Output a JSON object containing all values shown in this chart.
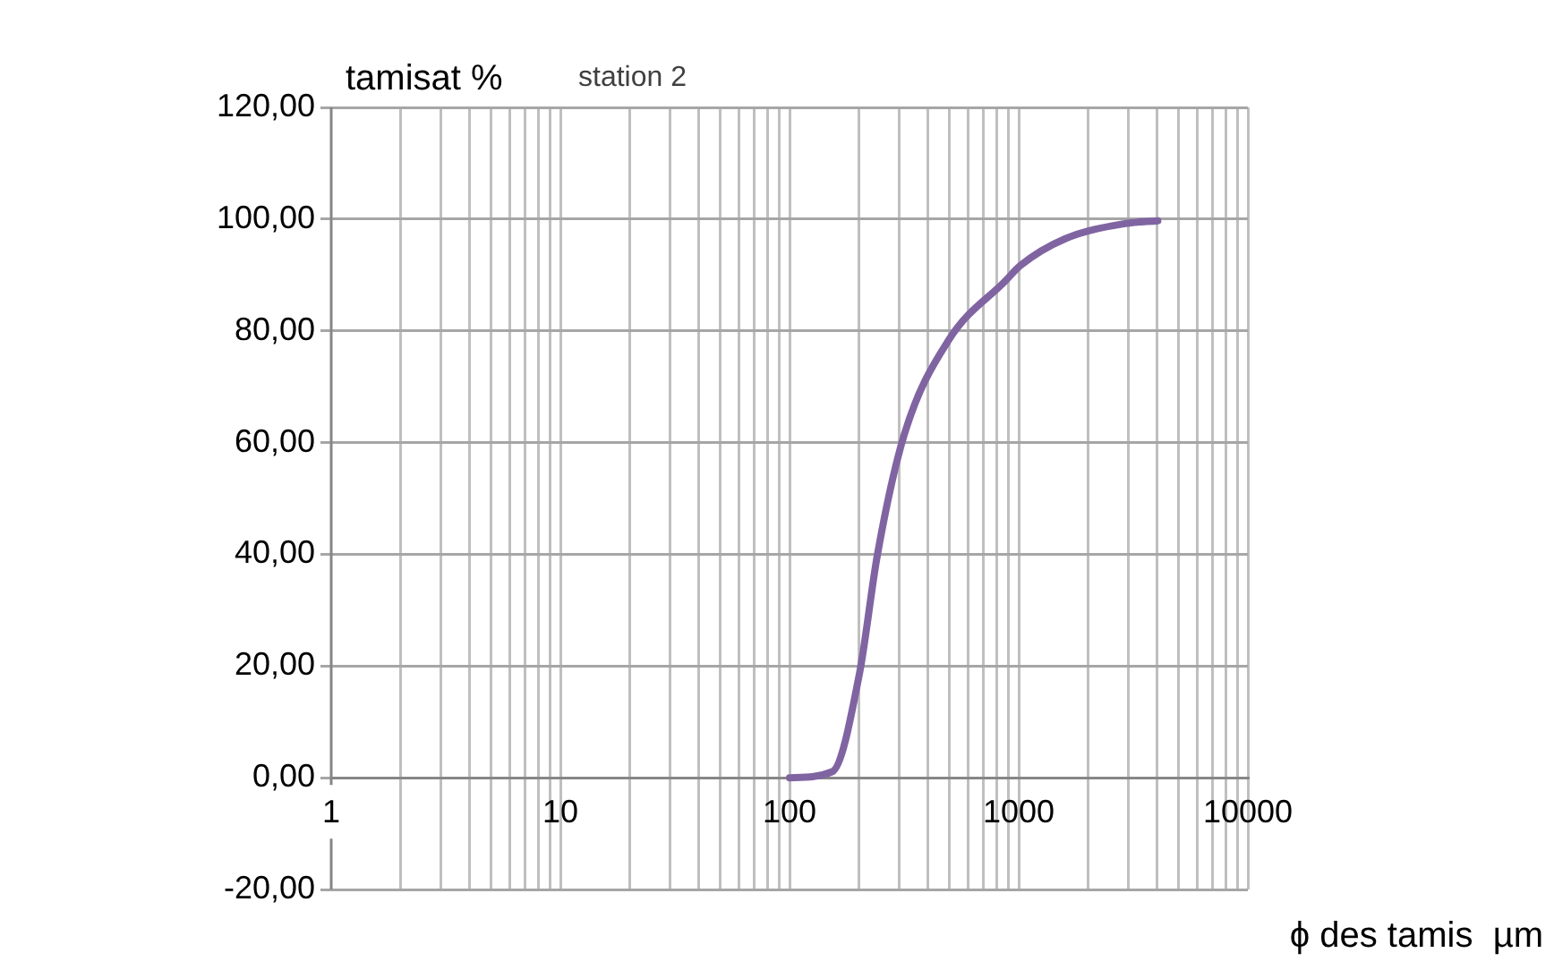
{
  "chart_data": {
    "type": "line",
    "title": "station 2",
    "ylabel": "tamisat %",
    "xlabel": "ϕ des tamis  µm",
    "log": "x",
    "grid": true,
    "legend": false,
    "marker": "none",
    "line_style": "solid",
    "series": [
      {
        "color": "#8064a2",
        "x": [
          100,
          154,
          202,
          242,
          316,
          496,
          878,
          1018,
          1597,
          2913,
          4046
        ],
        "values": [
          0,
          1.1,
          18.7,
          40,
          61.3,
          78.4,
          89,
          91.7,
          96.5,
          99.2,
          99.7
        ]
      }
    ],
    "xlim": [
      1,
      10000
    ],
    "xticks": [
      1,
      {
        "value": 2,
        "label": null
      },
      {
        "value": 3,
        "label": null
      },
      {
        "value": 4,
        "label": null
      },
      {
        "value": 5,
        "label": null
      },
      {
        "value": 6,
        "label": null
      },
      {
        "value": 7,
        "label": null
      },
      {
        "value": 8,
        "label": null
      },
      {
        "value": 9,
        "label": null
      },
      10,
      {
        "value": 20,
        "label": null
      },
      {
        "value": 30,
        "label": null
      },
      {
        "value": 40,
        "label": null
      },
      {
        "value": 50,
        "label": null
      },
      {
        "value": 60,
        "label": null
      },
      {
        "value": 70,
        "label": null
      },
      {
        "value": 80,
        "label": null
      },
      {
        "value": 90,
        "label": null
      },
      100,
      {
        "value": 200,
        "label": null
      },
      {
        "value": 300,
        "label": null
      },
      {
        "value": 400,
        "label": null
      },
      {
        "value": 500,
        "label": null
      },
      {
        "value": 600,
        "label": null
      },
      {
        "value": 700,
        "label": null
      },
      {
        "value": 800,
        "label": null
      },
      {
        "value": 900,
        "label": null
      },
      1000,
      {
        "value": 2000,
        "label": null
      },
      {
        "value": 3000,
        "label": null
      },
      {
        "value": 4000,
        "label": null
      },
      {
        "value": 5000,
        "label": null
      },
      {
        "value": 6000,
        "label": null
      },
      {
        "value": 7000,
        "label": null
      },
      {
        "value": 8000,
        "label": null
      },
      {
        "value": 9000,
        "label": null
      },
      10000
    ],
    "ylim": [
      -20,
      120
    ],
    "yticks": [
      {
        "value": -20,
        "label": "-20,00"
      },
      {
        "value": 0,
        "label": "0,00"
      },
      {
        "value": 20,
        "label": "20,00"
      },
      {
        "value": 40,
        "label": "40,00"
      },
      {
        "value": 60,
        "label": "60,00"
      },
      {
        "value": 80,
        "label": "80,00"
      },
      {
        "value": 100,
        "label": "100,00"
      },
      {
        "value": 120,
        "label": "120,00"
      }
    ]
  }
}
